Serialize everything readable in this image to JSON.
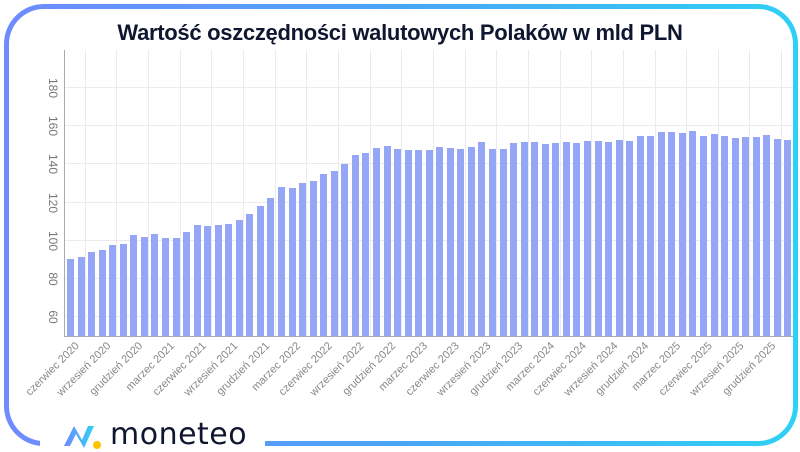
{
  "title": "Wartość oszczędności walutowych Polaków w mld PLN",
  "brand": {
    "name": "moneteo"
  },
  "colors": {
    "bar": "#95a6f6",
    "frame_start": "#6f8bff",
    "frame_end": "#2fd0f5",
    "logo_dot": "#ffc400"
  },
  "chart_data": {
    "type": "bar",
    "title": "Wartość oszczędności walutowych Polaków w mld PLN",
    "xlabel": "",
    "ylabel": "",
    "ylim": [
      50,
      200
    ],
    "yticks": [
      60,
      80,
      100,
      120,
      140,
      160,
      180
    ],
    "grid": true,
    "legend": null,
    "tick_labels": [
      "czerwiec 2020",
      "wrzesień 2020",
      "grudzień 2020",
      "marzec 2021",
      "czerwiec 2021",
      "wrzesień 2021",
      "grudzień 2021",
      "marzec 2022",
      "czerwiec 2022",
      "wrzesień 2022",
      "grudzień 2022",
      "marzec 2023",
      "czerwiec 2023",
      "wrzesień 2023",
      "grudzień 2023",
      "marzec 2024",
      "czerwiec 2024",
      "wrzesień 2024",
      "grudzień 2024",
      "marzec 2025",
      "czerwiec 2025",
      "wrzesień 2025",
      "grudzień 2025"
    ],
    "categories": [
      "06.2020",
      "07.2020",
      "08.2020",
      "09.2020",
      "10.2020",
      "11.2020",
      "12.2020",
      "01.2021",
      "02.2021",
      "03.2021",
      "04.2021",
      "05.2021",
      "06.2021",
      "07.2021",
      "08.2021",
      "09.2021",
      "10.2021",
      "11.2021",
      "12.2021",
      "01.2022",
      "02.2022",
      "03.2022",
      "04.2022",
      "05.2022",
      "06.2022",
      "07.2022",
      "08.2022",
      "09.2022",
      "10.2022",
      "11.2022",
      "12.2022",
      "01.2023",
      "02.2023",
      "03.2023",
      "04.2023",
      "05.2023",
      "06.2023",
      "07.2023",
      "08.2023",
      "09.2023",
      "10.2023",
      "11.2023",
      "12.2023",
      "01.2024",
      "02.2024",
      "03.2024",
      "04.2024",
      "05.2024",
      "06.2024",
      "07.2024",
      "08.2024",
      "09.2024",
      "10.2024",
      "11.2024",
      "12.2024",
      "01.2025",
      "02.2025",
      "03.2025",
      "04.2025",
      "05.2025",
      "06.2025",
      "07.2025",
      "08.2025",
      "09.2025",
      "10.2025",
      "11.2025",
      "12.2025",
      "01.2026",
      "02.2026"
    ],
    "values": [
      90.5,
      91.5,
      94,
      95,
      97.5,
      98.5,
      103,
      102,
      103.5,
      101.5,
      101.5,
      104.5,
      108,
      107.5,
      108,
      109,
      111,
      114,
      118,
      122.5,
      128,
      127.5,
      130.5,
      131.5,
      135,
      136.5,
      140,
      145,
      146,
      148.5,
      149.5,
      148,
      147.5,
      147.5,
      147.5,
      149,
      148.5,
      148,
      149,
      151.5,
      148,
      148,
      151,
      152,
      151.5,
      150.5,
      151,
      152,
      151,
      152.5,
      152.5,
      152,
      153,
      152.5,
      155,
      155,
      157,
      157,
      156.5,
      157.5,
      155,
      156,
      155,
      154,
      154.5,
      154.5,
      155.5,
      153.5,
      153
    ]
  }
}
